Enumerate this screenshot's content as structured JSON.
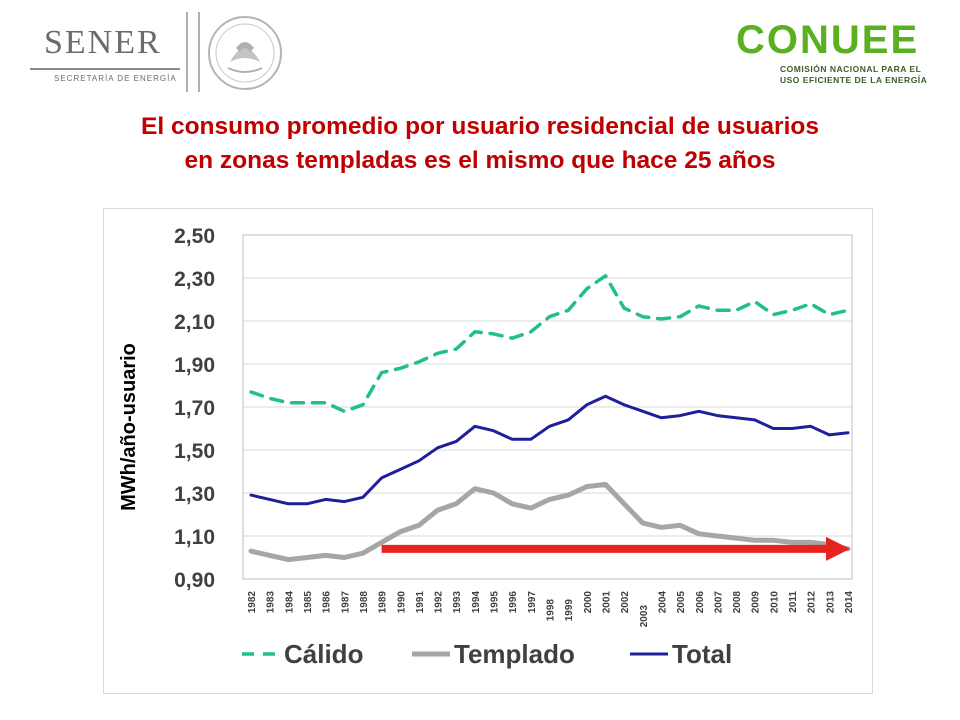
{
  "header": {
    "left_logo": {
      "name": "SENER",
      "subtitle": "SECRETARÍA DE ENERGÍA"
    },
    "seal_icon": "mexican-coat-of-arms",
    "right_logo": {
      "name": "CONUEE",
      "subtitle_line1": "COMISIÓN NACIONAL PARA EL",
      "subtitle_line2": "USO EFICIENTE DE LA ENERGÍA"
    }
  },
  "title_line1": "El consumo promedio por usuario residencial de usuarios",
  "title_line2": "en zonas templadas es el mismo que hace 25 años",
  "colors": {
    "title": "#c00000",
    "calido": "#1fbf8f",
    "templado": "#a6a6a6",
    "total": "#1f1f9c",
    "arrow": "#e8231f"
  },
  "chart_data": {
    "type": "line",
    "ylabel": "MWh/año-usuario",
    "xlabel": "",
    "ylim": [
      0.9,
      2.5
    ],
    "yticks": [
      "0,90",
      "1,10",
      "1,30",
      "1,50",
      "1,70",
      "1,90",
      "2,10",
      "2,30",
      "2,50"
    ],
    "grid": true,
    "legend_position": "bottom",
    "categories": [
      "1982",
      "1983",
      "1984",
      "1985",
      "1986",
      "1987",
      "1988",
      "1989",
      "1990",
      "1991",
      "1992",
      "1993",
      "1994",
      "1995",
      "1996",
      "1997",
      "1998",
      "1999",
      "2000",
      "2001",
      "2002",
      "2003",
      "2004",
      "2005",
      "2006",
      "2007",
      "2008",
      "2009",
      "2010",
      "2011",
      "2012",
      "2013",
      "2014"
    ],
    "series": [
      {
        "name": "Cálido",
        "style": "dashed",
        "values": [
          1.77,
          1.74,
          1.72,
          1.72,
          1.72,
          1.68,
          1.71,
          1.86,
          1.88,
          1.91,
          1.95,
          1.97,
          2.05,
          2.04,
          2.02,
          2.05,
          2.12,
          2.15,
          2.25,
          2.31,
          2.16,
          2.12,
          2.11,
          2.12,
          2.17,
          2.15,
          2.15,
          2.19,
          2.13,
          2.15,
          2.18,
          2.13,
          2.15
        ]
      },
      {
        "name": "Templado",
        "style": "solid",
        "values": [
          1.03,
          1.01,
          0.99,
          1.0,
          1.01,
          1.0,
          1.02,
          1.07,
          1.12,
          1.15,
          1.22,
          1.25,
          1.32,
          1.3,
          1.25,
          1.23,
          1.27,
          1.29,
          1.33,
          1.34,
          1.25,
          1.16,
          1.14,
          1.15,
          1.11,
          1.1,
          1.09,
          1.08,
          1.08,
          1.07,
          1.07,
          1.06,
          1.04
        ]
      },
      {
        "name": "Total",
        "style": "solid",
        "values": [
          1.29,
          1.27,
          1.25,
          1.25,
          1.27,
          1.26,
          1.28,
          1.37,
          1.41,
          1.45,
          1.51,
          1.54,
          1.61,
          1.59,
          1.55,
          1.55,
          1.61,
          1.64,
          1.71,
          1.75,
          1.71,
          1.68,
          1.65,
          1.66,
          1.68,
          1.66,
          1.65,
          1.64,
          1.6,
          1.6,
          1.61,
          1.57,
          1.58
        ]
      }
    ],
    "annotation": {
      "type": "arrow",
      "from_category": "1989",
      "to_category": "2014",
      "value": 1.04
    }
  }
}
